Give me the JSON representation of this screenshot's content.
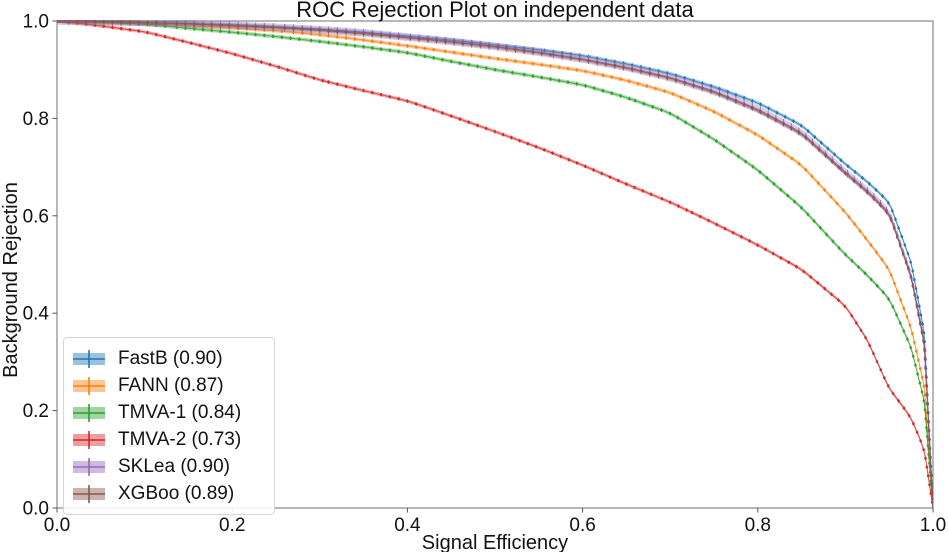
{
  "chart_data": {
    "type": "line",
    "title": "ROC Rejection Plot on independent data",
    "xlabel": "Signal Efficiency",
    "ylabel": "Background Rejection",
    "xlim": [
      0.0,
      1.0
    ],
    "ylim": [
      0.0,
      1.0
    ],
    "x_tick_labels": [
      "0.0",
      "0.2",
      "0.4",
      "0.6",
      "0.8",
      "1.0"
    ],
    "y_tick_labels": [
      "0.0",
      "0.2",
      "0.4",
      "0.6",
      "0.8",
      "1.0"
    ],
    "grid": false,
    "legend_position": "lower left",
    "marker_style": "dot-with-errorbar",
    "series": [
      {
        "name": "FastB (0.90)",
        "auc": 0.9,
        "color": "#1f77b4",
        "err": 0.004,
        "x": [
          0,
          0.05,
          0.1,
          0.15,
          0.2,
          0.25,
          0.3,
          0.35,
          0.4,
          0.45,
          0.5,
          0.55,
          0.6,
          0.65,
          0.7,
          0.75,
          0.8,
          0.85,
          0.9,
          0.925,
          0.95,
          0.975,
          0.99,
          1.0
        ],
        "y": [
          1.0,
          0.999,
          0.997,
          0.995,
          0.992,
          0.988,
          0.983,
          0.977,
          0.969,
          0.961,
          0.951,
          0.941,
          0.929,
          0.912,
          0.892,
          0.865,
          0.832,
          0.786,
          0.706,
          0.67,
          0.628,
          0.505,
          0.36,
          0.0
        ]
      },
      {
        "name": "FANN (0.87)",
        "auc": 0.87,
        "color": "#ff7f0e",
        "err": 0.004,
        "x": [
          0,
          0.05,
          0.1,
          0.15,
          0.2,
          0.25,
          0.3,
          0.35,
          0.4,
          0.45,
          0.5,
          0.55,
          0.6,
          0.65,
          0.7,
          0.75,
          0.8,
          0.85,
          0.9,
          0.925,
          0.95,
          0.975,
          0.99,
          1.0
        ],
        "y": [
          1.0,
          0.9965,
          0.994,
          0.99,
          0.986,
          0.98,
          0.972,
          0.961,
          0.949,
          0.936,
          0.923,
          0.911,
          0.898,
          0.878,
          0.853,
          0.814,
          0.766,
          0.704,
          0.607,
          0.55,
          0.49,
          0.37,
          0.25,
          0.0
        ]
      },
      {
        "name": "TMVA-1 (0.84)",
        "auc": 0.84,
        "color": "#2ca02c",
        "err": 0.004,
        "x": [
          0,
          0.05,
          0.1,
          0.15,
          0.2,
          0.25,
          0.3,
          0.35,
          0.4,
          0.45,
          0.5,
          0.55,
          0.6,
          0.65,
          0.7,
          0.75,
          0.8,
          0.85,
          0.9,
          0.925,
          0.95,
          0.975,
          0.99,
          1.0
        ],
        "y": [
          1.0,
          0.9975,
          0.9935,
          0.985,
          0.977,
          0.968,
          0.958,
          0.947,
          0.935,
          0.917,
          0.9,
          0.885,
          0.869,
          0.843,
          0.811,
          0.757,
          0.694,
          0.617,
          0.52,
          0.478,
          0.43,
          0.33,
          0.22,
          0.0
        ]
      },
      {
        "name": "TMVA-2 (0.73)",
        "auc": 0.73,
        "color": "#d62728",
        "err": 0.003,
        "x": [
          0,
          0.05,
          0.1,
          0.15,
          0.2,
          0.25,
          0.3,
          0.35,
          0.4,
          0.45,
          0.5,
          0.55,
          0.6,
          0.65,
          0.7,
          0.75,
          0.8,
          0.85,
          0.9,
          0.925,
          0.95,
          0.965,
          0.975,
          0.99,
          1.0
        ],
        "y": [
          1.0,
          0.99,
          0.978,
          0.956,
          0.933,
          0.907,
          0.879,
          0.857,
          0.836,
          0.805,
          0.773,
          0.74,
          0.704,
          0.665,
          0.628,
          0.585,
          0.54,
          0.49,
          0.415,
          0.345,
          0.245,
          0.21,
          0.185,
          0.12,
          0.0
        ]
      },
      {
        "name": "SKLea (0.90)",
        "auc": 0.9,
        "color": "#9467bd",
        "err": 0.008,
        "x": [
          0,
          0.05,
          0.1,
          0.15,
          0.2,
          0.25,
          0.3,
          0.35,
          0.4,
          0.45,
          0.5,
          0.55,
          0.6,
          0.65,
          0.7,
          0.75,
          0.8,
          0.85,
          0.9,
          0.925,
          0.95,
          0.975,
          0.99,
          1.0
        ],
        "y": [
          1.0,
          0.999,
          0.997,
          0.9945,
          0.991,
          0.987,
          0.982,
          0.9755,
          0.967,
          0.958,
          0.948,
          0.936,
          0.922,
          0.905,
          0.884,
          0.856,
          0.819,
          0.771,
          0.69,
          0.652,
          0.607,
          0.478,
          0.34,
          0.0
        ]
      },
      {
        "name": "XGBoo (0.89)",
        "auc": 0.89,
        "color": "#8c564b",
        "err": 0.004,
        "x": [
          0,
          0.05,
          0.1,
          0.15,
          0.2,
          0.25,
          0.3,
          0.35,
          0.4,
          0.45,
          0.5,
          0.55,
          0.6,
          0.65,
          0.7,
          0.75,
          0.8,
          0.85,
          0.9,
          0.925,
          0.95,
          0.975,
          0.99,
          1.0
        ],
        "y": [
          1.0,
          0.999,
          0.9968,
          0.994,
          0.9905,
          0.9865,
          0.981,
          0.974,
          0.9655,
          0.9565,
          0.9465,
          0.9345,
          0.9205,
          0.9035,
          0.8825,
          0.854,
          0.8165,
          0.7685,
          0.687,
          0.649,
          0.604,
          0.4745,
          0.336,
          0.0
        ]
      }
    ]
  },
  "style": {
    "spine_color": "#707070",
    "tick_color": "#555555",
    "band_opacity": 0.35,
    "line_opacity": 0.75
  }
}
